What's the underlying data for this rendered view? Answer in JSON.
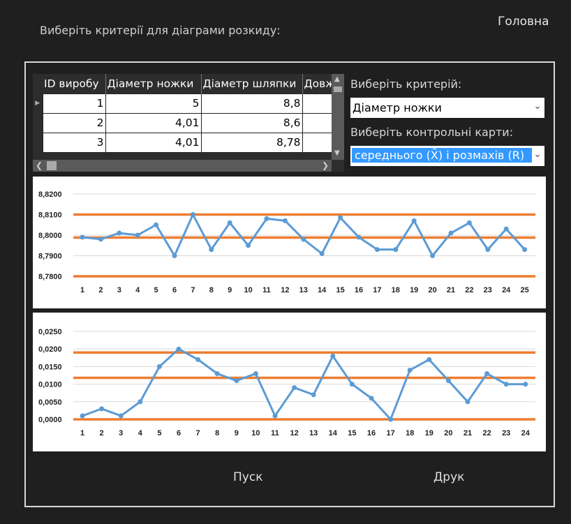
{
  "header": {
    "title": "Виберіть критерії для діаграми розкиду:",
    "home_link": "Головна"
  },
  "table": {
    "columns": [
      "ID виробу",
      "Діаметр ножки",
      "Діаметр шляпки",
      "Довжина"
    ],
    "rows": [
      [
        "1",
        "5",
        "8,8",
        ""
      ],
      [
        "2",
        "4,01",
        "8,6",
        ""
      ],
      [
        "3",
        "4,01",
        "8,78",
        ""
      ]
    ]
  },
  "criterion": {
    "label": "Виберіть критерій:",
    "selected": "Діаметр ножки"
  },
  "control_charts": {
    "label": "Виберіть контрольні карти:",
    "selected": "середнього (X̄) і розмахів (R)"
  },
  "buttons": {
    "run": "Пуск",
    "print": "Друк"
  },
  "colors": {
    "series": "#5b9bd5",
    "control_lines": "#ed7d31"
  },
  "chart_data": [
    {
      "type": "line",
      "x": [
        1,
        2,
        3,
        4,
        5,
        6,
        7,
        8,
        9,
        10,
        11,
        12,
        13,
        14,
        15,
        16,
        17,
        18,
        19,
        20,
        21,
        22,
        23,
        24,
        25
      ],
      "values": [
        8.799,
        8.798,
        8.801,
        8.8,
        8.805,
        8.79,
        8.81,
        8.793,
        8.806,
        8.795,
        8.808,
        8.807,
        8.798,
        8.791,
        8.8085,
        8.799,
        8.793,
        8.793,
        8.807,
        8.79,
        8.801,
        8.806,
        8.793,
        8.803,
        8.793
      ],
      "control_lines": {
        "ucl": 8.81,
        "cl": 8.7988,
        "lcl": 8.78
      },
      "ylim": [
        8.78,
        8.82
      ],
      "yticks": [
        "8,7800",
        "8,7900",
        "8,8000",
        "8,8100",
        "8,8200"
      ],
      "grid": true
    },
    {
      "type": "line",
      "x": [
        1,
        2,
        3,
        4,
        5,
        6,
        7,
        8,
        9,
        10,
        11,
        12,
        13,
        14,
        15,
        16,
        17,
        18,
        19,
        20,
        21,
        22,
        23,
        24
      ],
      "values": [
        0.001,
        0.003,
        0.001,
        0.005,
        0.015,
        0.02,
        0.017,
        0.013,
        0.011,
        0.013,
        0.001,
        0.009,
        0.007,
        0.018,
        0.01,
        0.006,
        0.0,
        0.014,
        0.017,
        0.011,
        0.005,
        0.013,
        0.01,
        0.01
      ],
      "control_lines": {
        "ucl": 0.019,
        "cl": 0.0118,
        "lcl": 0.0
      },
      "ylim": [
        0,
        0.025
      ],
      "yticks": [
        "0,0000",
        "0,0050",
        "0,0100",
        "0,0150",
        "0,0200",
        "0,0250"
      ],
      "grid": true
    }
  ]
}
